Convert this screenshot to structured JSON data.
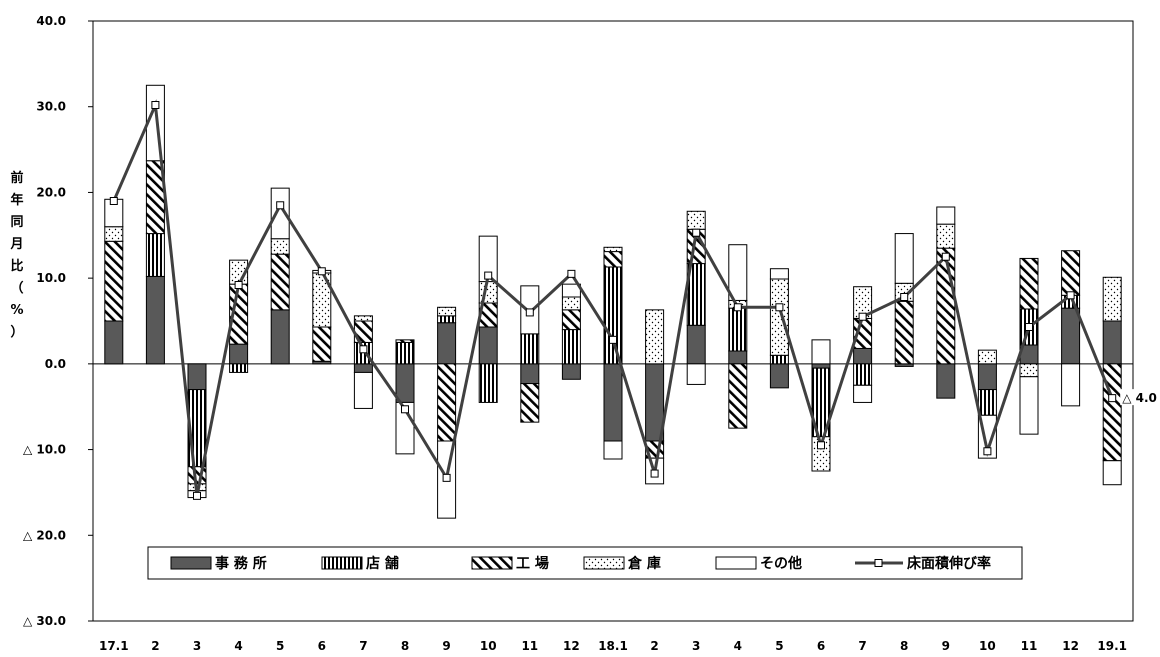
{
  "chart_data": {
    "type": "bar",
    "stacked": true,
    "ylabel": "前年同月比（%）",
    "ylabel_chars": [
      "前",
      "年",
      "同",
      "月",
      "比",
      "（",
      "%",
      "）"
    ],
    "ylim": [
      -30,
      40
    ],
    "y_ticks": [
      {
        "value": 40,
        "label": "40.0"
      },
      {
        "value": 30,
        "label": "30.0"
      },
      {
        "value": 20,
        "label": "20.0"
      },
      {
        "value": 10,
        "label": "10.0"
      },
      {
        "value": 0,
        "label": "0.0"
      },
      {
        "value": -10,
        "label": "△ 10.0"
      },
      {
        "value": -20,
        "label": "△ 20.0"
      },
      {
        "value": -30,
        "label": "△ 30.0"
      }
    ],
    "categories": [
      "17.1",
      "2",
      "3",
      "4",
      "5",
      "6",
      "7",
      "8",
      "9",
      "10",
      "11",
      "12",
      "18.1",
      "2",
      "3",
      "4",
      "5",
      "6",
      "7",
      "8",
      "9",
      "10",
      "11",
      "12",
      "19.1"
    ],
    "series": [
      {
        "name": "事 務 所",
        "pattern": "solid",
        "values": [
          5.0,
          10.2,
          -3.0,
          2.3,
          6.3,
          0.3,
          -1.0,
          -4.5,
          4.8,
          4.3,
          -2.3,
          -1.8,
          -9.0,
          -9.0,
          4.5,
          1.5,
          -2.8,
          -0.5,
          1.8,
          -0.3,
          -4.0,
          -3.0,
          2.2,
          6.5,
          5.0
        ]
      },
      {
        "name": "店 舗",
        "pattern": "vertical",
        "values": [
          0,
          5.0,
          -9.0,
          -1.0,
          0,
          0,
          2.5,
          2.5,
          0.8,
          -4.5,
          3.5,
          4.0,
          11.3,
          0,
          7.2,
          5.0,
          1.0,
          -8.0,
          -2.5,
          0,
          0,
          -3.0,
          4.2,
          1.5,
          0
        ]
      },
      {
        "name": "工 場",
        "pattern": "diagonal",
        "values": [
          9.3,
          8.5,
          -2.0,
          7.0,
          6.5,
          4.0,
          2.5,
          0.3,
          -9.0,
          2.8,
          -4.5,
          2.3,
          1.8,
          -2.0,
          4.0,
          -7.5,
          0,
          0,
          3.5,
          7.3,
          13.5,
          0,
          5.9,
          5.2,
          -11.3
        ]
      },
      {
        "name": "倉 庫",
        "pattern": "dots",
        "values": [
          1.7,
          0,
          -0.8,
          2.8,
          1.8,
          6.3,
          0.6,
          0,
          1.0,
          2.5,
          0,
          1.5,
          0.5,
          6.3,
          2.1,
          0.9,
          8.9,
          -4.0,
          3.7,
          2.1,
          2.8,
          1.6,
          -1.5,
          0,
          5.1
        ]
      },
      {
        "name": "その他",
        "pattern": "blank",
        "values": [
          3.2,
          8.8,
          -0.8,
          0,
          5.9,
          0.3,
          -4.2,
          -6.0,
          -9.0,
          5.3,
          5.6,
          1.5,
          -2.1,
          -3.0,
          -2.4,
          6.5,
          1.2,
          2.8,
          -2.0,
          5.8,
          2.0,
          -5.0,
          -6.7,
          -4.9,
          -2.8
        ]
      },
      {
        "name": "床面積伸び率",
        "type": "line",
        "values": [
          19.0,
          30.2,
          -15.4,
          9.2,
          18.5,
          10.8,
          1.7,
          -5.3,
          -13.3,
          10.3,
          6.0,
          10.5,
          2.8,
          -12.8,
          15.3,
          6.6,
          6.6,
          -9.5,
          5.5,
          7.8,
          12.5,
          -10.2,
          4.3,
          8.0,
          -4.0
        ]
      }
    ],
    "annotations": [
      {
        "category_index": 24,
        "text": "△ 4.0"
      }
    ],
    "legend": {
      "placement": "bottom-inside"
    },
    "grid": false,
    "colors": {
      "bar_edge": "#000000",
      "solid_fill": "#595959",
      "line": "#404040"
    }
  }
}
